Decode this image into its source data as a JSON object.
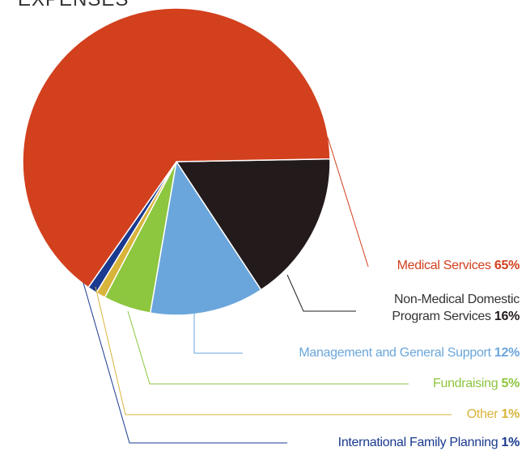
{
  "chart_data": {
    "type": "pie",
    "title": "EXPENSES",
    "categories": [
      "Medical Services",
      "Non-Medical Domestic Program Services",
      "Management and General Support",
      "Fundraising",
      "Other",
      "International Family Planning"
    ],
    "values": [
      65,
      16,
      12,
      5,
      1,
      1
    ],
    "value_labels": [
      "65%",
      "16%",
      "12%",
      "5%",
      "1%",
      "1%"
    ],
    "colors": [
      "#d2401e",
      "#231a1c",
      "#6aa6dc",
      "#8dc63f",
      "#d9b43a",
      "#1a3a8f"
    ]
  }
}
